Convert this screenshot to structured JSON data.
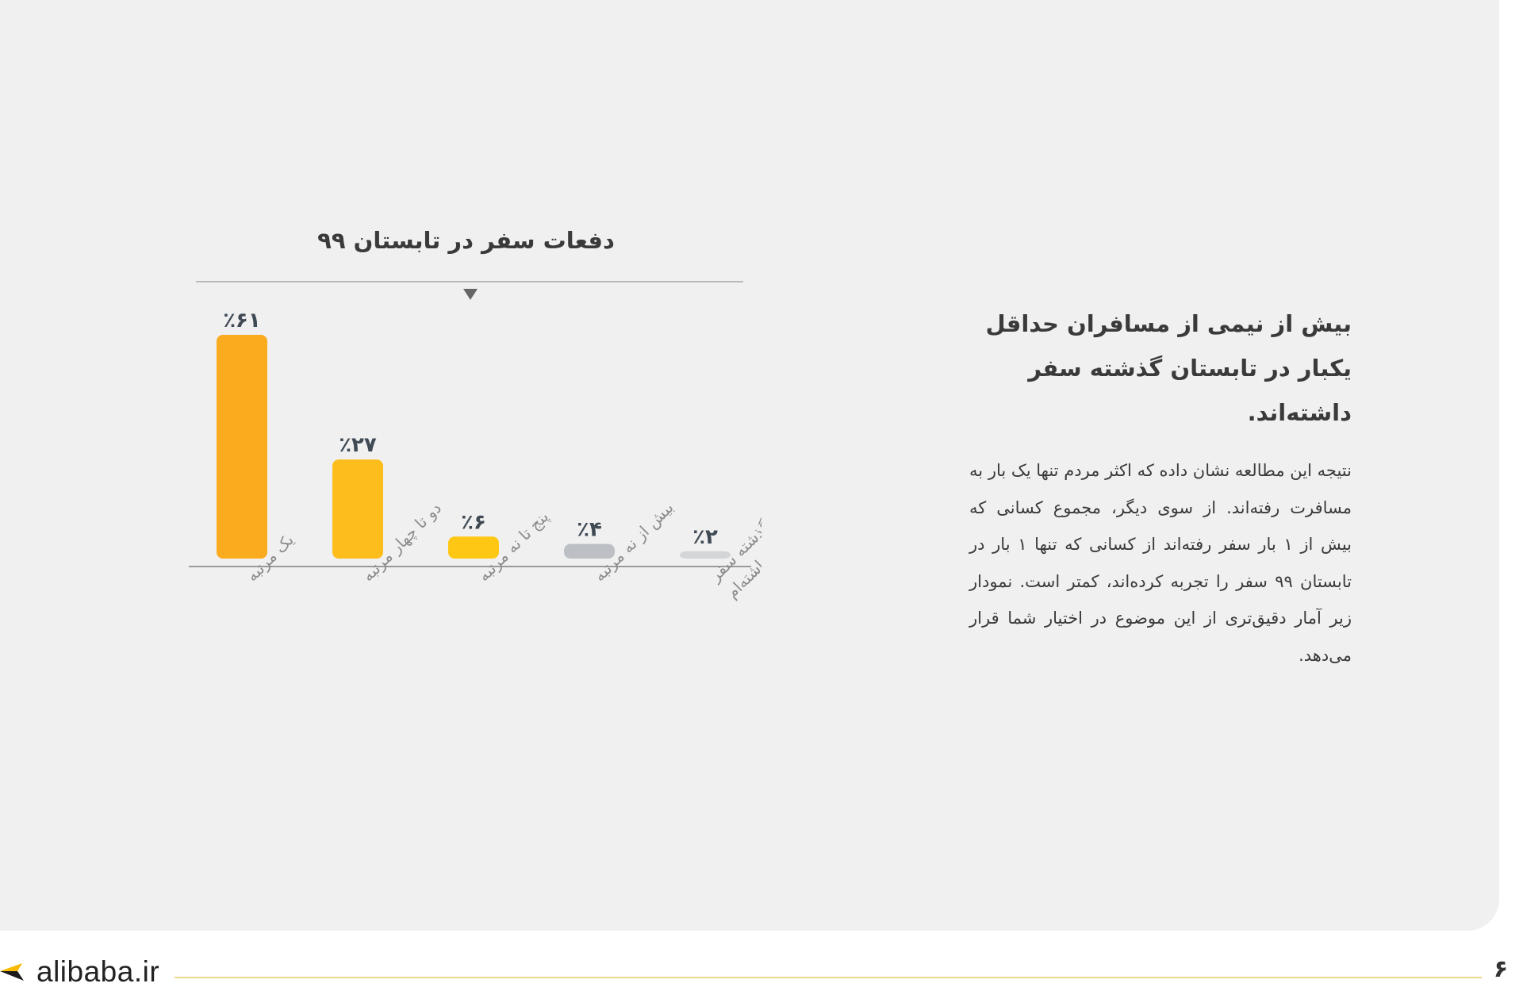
{
  "colors": {
    "card_bg": "#f0f0f0",
    "bar_orange": "#fbab1e",
    "bar_gold": "#fcbd1d",
    "bar_yellow": "#fdc713",
    "bar_gray": "#bcc0c4",
    "bar_light_gray": "#d3d5d8",
    "axis": "#a7a7a7",
    "brand_accent": "#f9b900",
    "footer_line": "#e9d98a"
  },
  "chart_data": {
    "type": "bar",
    "title": "دفعات سفر در تابستان ۹۹",
    "categories": [
      "یک مرتبه",
      "دو تا چهار مرتبه",
      "پنج تا نه مرتبه",
      "بیش از نه مرتبه",
      "در سه ماه گذشته سفر داخلی نداشته‌ام"
    ],
    "category_lines": [
      [
        "یک مرتبه"
      ],
      [
        "دو تا چهار مرتبه"
      ],
      [
        "پنج تا نه مرتبه"
      ],
      [
        "بیش از نه مرتبه"
      ],
      [
        "در سه ماه گذشته سفر",
        "داخلی نداشته‌ام"
      ]
    ],
    "values": [
      61,
      27,
      6,
      4,
      2
    ],
    "value_labels": [
      "٪۶۱",
      "٪۲۷",
      "٪۶",
      "٪۴",
      "٪۲"
    ],
    "bar_colors": [
      "#fbab1e",
      "#fcbd1d",
      "#fdc713",
      "#bcc0c4",
      "#d3d5d8"
    ],
    "unit": "percent",
    "ylim": [
      0,
      61
    ],
    "grid": false,
    "legend": "none",
    "marker_icon": "triangle-down-icon"
  },
  "text": {
    "heading": "بیش از نیمی از مسافران حداقل یکبار در تابستان گذشته سفر داشته‌اند.",
    "body": "نتیجه این مطالعه نشان داده که اکثر مردم تنها یک بار به مسافرت رفته‌اند. از سوی دیگر، مجموع کسانی که بیش از ۱ بار سفر رفته‌اند از کسانی که تنها ۱ بار در تابستان ۹۹ سفر را تجربه کرده‌اند، کمتر است. نمودار زیر آمار دقیق‌تری از این موضوع در اختیار شما قرار می‌دهد."
  },
  "footer": {
    "brand": "alibaba.ir",
    "logo_icon": "alibaba-logo-icon",
    "page_number": "۶"
  }
}
